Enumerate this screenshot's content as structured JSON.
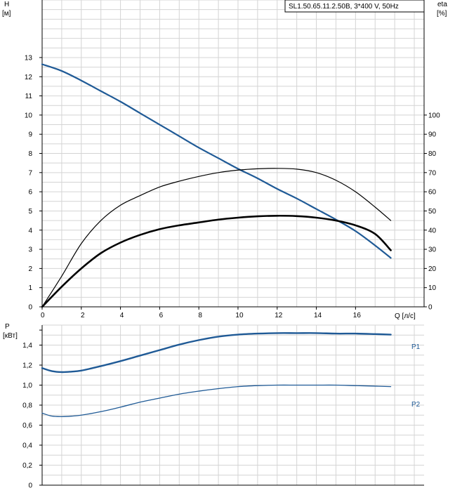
{
  "chart_data": [
    {
      "type": "line",
      "title": "SL1.50.65.11.2.50B, 3*400 V, 50Hz",
      "xlabel": "Q [л/с]",
      "ylabel_left": "H",
      "ylabel_left_unit": "[м]",
      "ylabel_right": "eta",
      "ylabel_right_unit": "[%]",
      "xlim": [
        0,
        19.5
      ],
      "ylim_left": [
        0,
        16
      ],
      "ylim_right": [
        0,
        160
      ],
      "x_ticks": [
        0,
        2,
        4,
        6,
        8,
        10,
        12,
        14,
        16
      ],
      "x_tick_labels": [
        "0",
        "2",
        "4",
        "6",
        "8",
        "10",
        "12",
        "14",
        "16"
      ],
      "y_left_ticks": [
        0,
        1,
        2,
        3,
        4,
        5,
        6,
        7,
        8,
        9,
        10,
        11,
        12,
        13
      ],
      "y_left_tick_labels": [
        "0",
        "1",
        "2",
        "3",
        "4",
        "5",
        "6",
        "7",
        "8",
        "9",
        "10",
        "11",
        "12",
        "13"
      ],
      "y_right_ticks": [
        0,
        10,
        20,
        30,
        40,
        50,
        60,
        70,
        80,
        90,
        100
      ],
      "y_right_tick_labels": [
        "0",
        "10",
        "20",
        "30",
        "40",
        "50",
        "60",
        "70",
        "80",
        "90",
        "100"
      ],
      "grid": true,
      "series": [
        {
          "axis": "left",
          "color": "#1f5a96",
          "x": [
            0,
            1,
            2,
            3,
            4,
            5,
            6,
            7,
            8,
            9,
            10,
            11,
            12,
            13,
            14,
            15,
            16,
            17,
            17.8
          ],
          "values": [
            12.65,
            12.3,
            11.8,
            11.25,
            10.7,
            10.1,
            9.5,
            8.9,
            8.3,
            7.75,
            7.2,
            6.7,
            6.15,
            5.65,
            5.1,
            4.55,
            3.95,
            3.2,
            2.55
          ]
        },
        {
          "axis": "right",
          "color": "#000000",
          "x": [
            0,
            1,
            2,
            3,
            4,
            5,
            6,
            7,
            8,
            9,
            10,
            11,
            12,
            13,
            14,
            15,
            16,
            17,
            17.8
          ],
          "values": [
            0,
            16,
            33,
            45,
            53,
            58,
            62.5,
            65.5,
            68,
            70,
            71.3,
            72,
            72.2,
            71.8,
            70,
            66,
            60,
            52,
            45
          ]
        },
        {
          "axis": "right",
          "color": "#000000",
          "x": [
            0,
            1,
            2,
            3,
            4,
            5,
            6,
            7,
            8,
            9,
            10,
            11,
            12,
            13,
            14,
            15,
            16,
            17,
            17.8
          ],
          "values": [
            0,
            10.5,
            20,
            28,
            33.5,
            37.5,
            40.5,
            42.5,
            44,
            45.5,
            46.5,
            47.2,
            47.5,
            47.3,
            46.5,
            45,
            42.5,
            38,
            29.5
          ]
        }
      ]
    },
    {
      "type": "line",
      "ylabel": "P",
      "ylabel_unit": "[кВт]",
      "xlim": [
        0,
        19.5
      ],
      "ylim": [
        0,
        1.6
      ],
      "x_ticks": [
        0,
        2,
        4,
        6,
        8,
        10,
        12,
        14,
        16
      ],
      "y_ticks": [
        0,
        0.2,
        0.4,
        0.6,
        0.8,
        1.0,
        1.2,
        1.4
      ],
      "y_tick_labels": [
        "0",
        "0,2",
        "0,4",
        "0,6",
        "0,8",
        "1,0",
        "1,2",
        "1,4"
      ],
      "grid": true,
      "series": [
        {
          "name": "P1",
          "color": "#1f5a96",
          "x": [
            0,
            0.5,
            1,
            1.5,
            2,
            3,
            4,
            5,
            6,
            7,
            8,
            9,
            10,
            11,
            12,
            13,
            14,
            15,
            16,
            17,
            17.8
          ],
          "values": [
            1.17,
            1.14,
            1.13,
            1.135,
            1.145,
            1.19,
            1.24,
            1.295,
            1.35,
            1.405,
            1.45,
            1.485,
            1.505,
            1.515,
            1.52,
            1.52,
            1.52,
            1.515,
            1.515,
            1.51,
            1.505
          ]
        },
        {
          "name": "P2",
          "color": "#1f5a96",
          "x": [
            0,
            0.5,
            1,
            1.5,
            2,
            3,
            4,
            5,
            6,
            7,
            8,
            9,
            10,
            11,
            12,
            13,
            14,
            15,
            16,
            17,
            17.8
          ],
          "values": [
            0.72,
            0.69,
            0.685,
            0.69,
            0.7,
            0.735,
            0.78,
            0.83,
            0.87,
            0.91,
            0.94,
            0.965,
            0.985,
            0.995,
            1.0,
            1.0,
            1.0,
            1.0,
            0.995,
            0.99,
            0.985
          ]
        }
      ]
    }
  ]
}
